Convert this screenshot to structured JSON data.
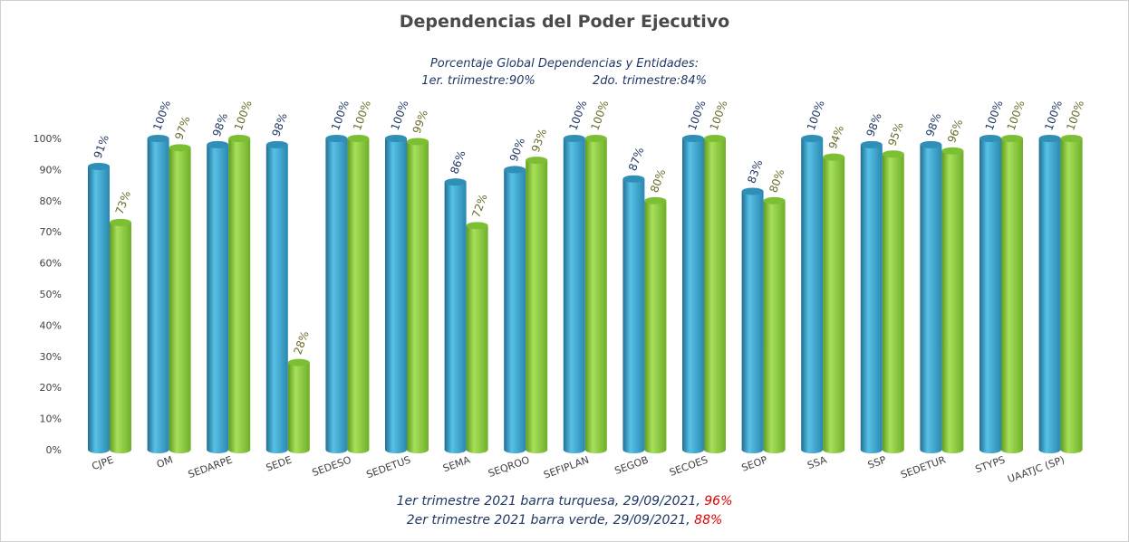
{
  "chart_data": {
    "type": "bar",
    "title": "Dependencias del Poder Ejecutivo",
    "subtitle_line1": "Porcentaje Global  Dependencias y Entidades:",
    "subtitle_q1": "1er. triimestre:90%",
    "subtitle_q2": "2do. trimestre:84%",
    "categories": [
      "CJPE",
      "OM",
      "SEDARPE",
      "SEDE",
      "SEDESO",
      "SEDETUS",
      "SEMA",
      "SEQROO",
      "SEFIPLAN",
      "SEGOB",
      "SECOES",
      "SEOP",
      "SSA",
      "SSP",
      "SEDETUR",
      "STYPS",
      "UAATJC (SP)"
    ],
    "series": [
      {
        "values": [
          91,
          100,
          98,
          98,
          100,
          100,
          86,
          90,
          100,
          87,
          100,
          83,
          100,
          98,
          98,
          100,
          100
        ],
        "labels": [
          "91%",
          "100%",
          "98%",
          "98%",
          "100%",
          "100%",
          "86%",
          "90%",
          "100%",
          "87%",
          "100%",
          "83%",
          "100%",
          "98%",
          "98%",
          "100%",
          "100%"
        ],
        "color": "#3aa6cc"
      },
      {
        "values": [
          73,
          97,
          100,
          28,
          100,
          99,
          72,
          93,
          100,
          80,
          100,
          80,
          94,
          95,
          96,
          100,
          100
        ],
        "labels": [
          "73%",
          "97%",
          "100%",
          "28%",
          "100%",
          "99%",
          "72%",
          "93%",
          "100%",
          "80%",
          "100%",
          "80%",
          "94%",
          "95%",
          "96%",
          "100%",
          "100%"
        ],
        "color": "#8ccc3c"
      }
    ],
    "ylim": [
      0,
      100
    ],
    "yticks": [
      "0%",
      "10%",
      "20%",
      "30%",
      "40%",
      "50%",
      "60%",
      "70%",
      "80%",
      "90%",
      "100%"
    ],
    "footnote1_text": "1er trimestre  2021 barra turquesa,   29/09/2021, ",
    "footnote1_value": "96%",
    "footnote2_text": "2er trimestre  2021 barra verde,   29/09/2021, ",
    "footnote2_value": "88%"
  }
}
